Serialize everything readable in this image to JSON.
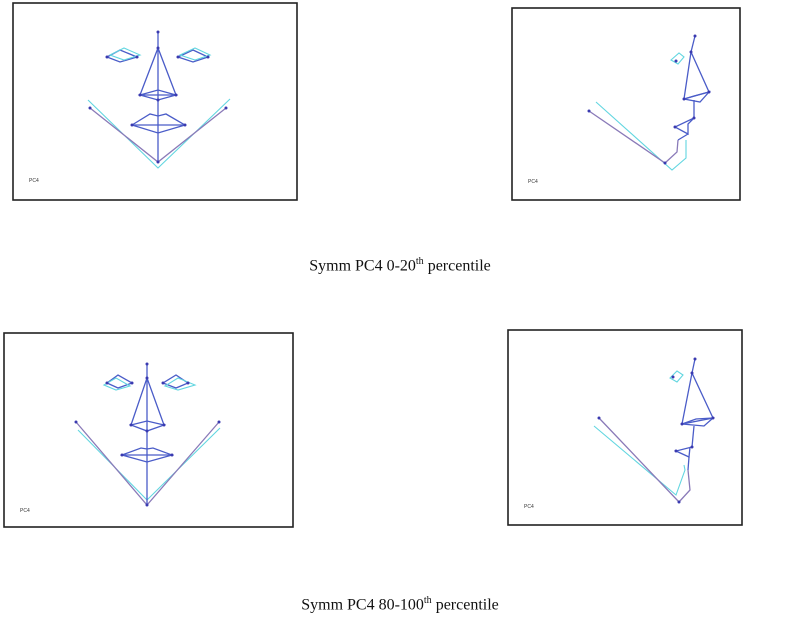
{
  "panels": [
    {
      "label": "PC4",
      "view": "front"
    },
    {
      "label": "PC4",
      "view": "profile"
    },
    {
      "label": "PC4",
      "view": "front"
    },
    {
      "label": "PC4",
      "view": "profile"
    }
  ],
  "captions": [
    {
      "prefix": "Symm  PC4 0-20",
      "sup": "th",
      "suffix": " percentile"
    },
    {
      "prefix": "Symm  PC4 80-100",
      "sup": "th",
      "suffix": " percentile"
    }
  ],
  "colors": {
    "landmark_lines": "#4a5cc8",
    "reference_lines": "#62d6e0",
    "jaw_lines": "#8a7ab8"
  }
}
